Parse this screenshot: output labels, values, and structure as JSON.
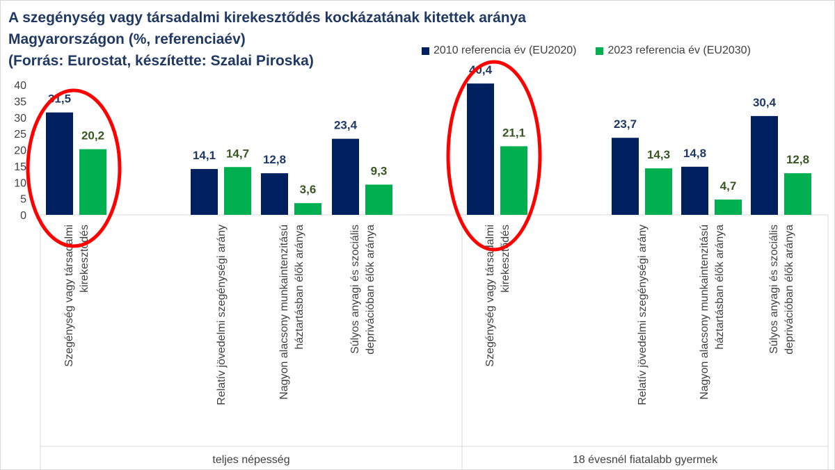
{
  "chart_data": {
    "type": "bar",
    "title": [
      "A szegénység vagy társadalmi kirekesztődés kockázatának kitettek aránya",
      "Magyarországon (%, referenciaév)",
      "(Forrás: Eurostat, készítette: Szalai Piroska)"
    ],
    "groups": [
      {
        "label": "teljes népesség",
        "categories": [
          [
            "Szegénység vagy társadalmi",
            "kirekesztődés"
          ],
          [
            "Relatív jövedelmi szegénységi arány"
          ],
          [
            "Nagyon alacsony munkaintenzitású",
            "háztartásban élők aránya"
          ],
          [
            "Súlyos anyagi és szociális",
            "deprivációban élők aránya"
          ]
        ]
      },
      {
        "label": "18 évesnél fiatalabb gyermek",
        "categories": [
          [
            "Szegénység vagy társadalmi",
            "kirekesztődés"
          ],
          [
            "Relatív jövedelmi szegénységi arány"
          ],
          [
            "Nagyon alacsony munkaintenzitású",
            "háztartásban élők aránya"
          ],
          [
            "Súlyos anyagi és szociális",
            "deprivációban élők aránya"
          ]
        ]
      }
    ],
    "series": [
      {
        "name": "2010 referencia év (EU2020)",
        "color": "#002060",
        "label_color": "#1f3864",
        "values": [
          31.5,
          14.1,
          12.8,
          23.4,
          40.4,
          23.7,
          14.8,
          30.4
        ],
        "labels": [
          "31,5",
          "14,1",
          "12,8",
          "23,4",
          "40,4",
          "23,7",
          "14,8",
          "30,4"
        ]
      },
      {
        "name": "2023 referencia év (EU2030)",
        "color": "#00b050",
        "label_color": "#375623",
        "values": [
          20.2,
          14.7,
          3.6,
          9.3,
          21.1,
          14.3,
          4.7,
          12.8
        ],
        "labels": [
          "20,2",
          "14,7",
          "3,6",
          "9,3",
          "21,1",
          "14,3",
          "4,7",
          "12,8"
        ]
      }
    ],
    "y_ticks": [
      "0",
      "5",
      "10",
      "15",
      "20",
      "25",
      "30",
      "35",
      "40"
    ],
    "ylim": [
      0,
      40
    ],
    "grid": false,
    "legend_position": "top-right",
    "highlight": {
      "shape": "ellipse",
      "color": "#ff0000",
      "targets": [
        0,
        4
      ]
    }
  }
}
